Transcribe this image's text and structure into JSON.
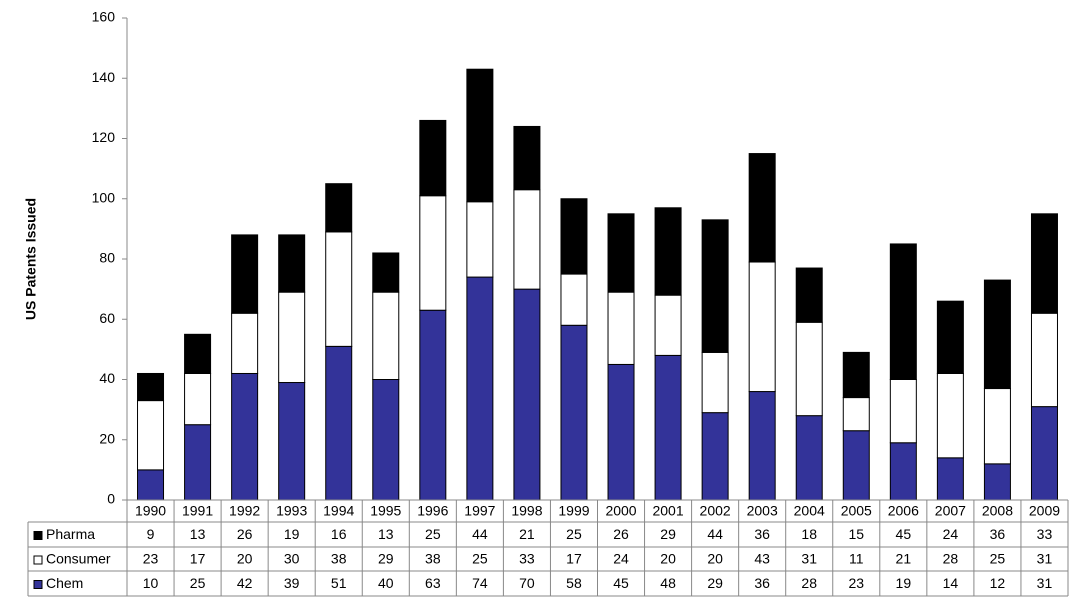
{
  "chart_data": {
    "type": "stacked-bar",
    "y_label": "US Patents Issued",
    "categories": [
      "1990",
      "1991",
      "1992",
      "1993",
      "1994",
      "1995",
      "1996",
      "1997",
      "1998",
      "1999",
      "2000",
      "2001",
      "2002",
      "2003",
      "2004",
      "2005",
      "2006",
      "2007",
      "2008",
      "2009"
    ],
    "series": [
      {
        "name": "Pharma",
        "color": "#000000",
        "values": [
          9,
          13,
          26,
          19,
          16,
          13,
          25,
          44,
          21,
          25,
          26,
          29,
          44,
          36,
          18,
          15,
          45,
          24,
          36,
          33
        ]
      },
      {
        "name": "Consumer",
        "color": "#ffffff",
        "values": [
          23,
          17,
          20,
          30,
          38,
          29,
          38,
          25,
          33,
          17,
          24,
          20,
          20,
          43,
          31,
          11,
          21,
          28,
          25,
          31
        ]
      },
      {
        "name": "Chem",
        "color": "#333399",
        "values": [
          10,
          25,
          42,
          39,
          51,
          40,
          63,
          74,
          70,
          58,
          45,
          48,
          29,
          36,
          28,
          23,
          19,
          14,
          12,
          31
        ]
      }
    ],
    "ylim": [
      0,
      160
    ],
    "yticks": [
      0,
      20,
      40,
      60,
      80,
      100,
      120,
      140,
      160
    ],
    "grid": false
  }
}
